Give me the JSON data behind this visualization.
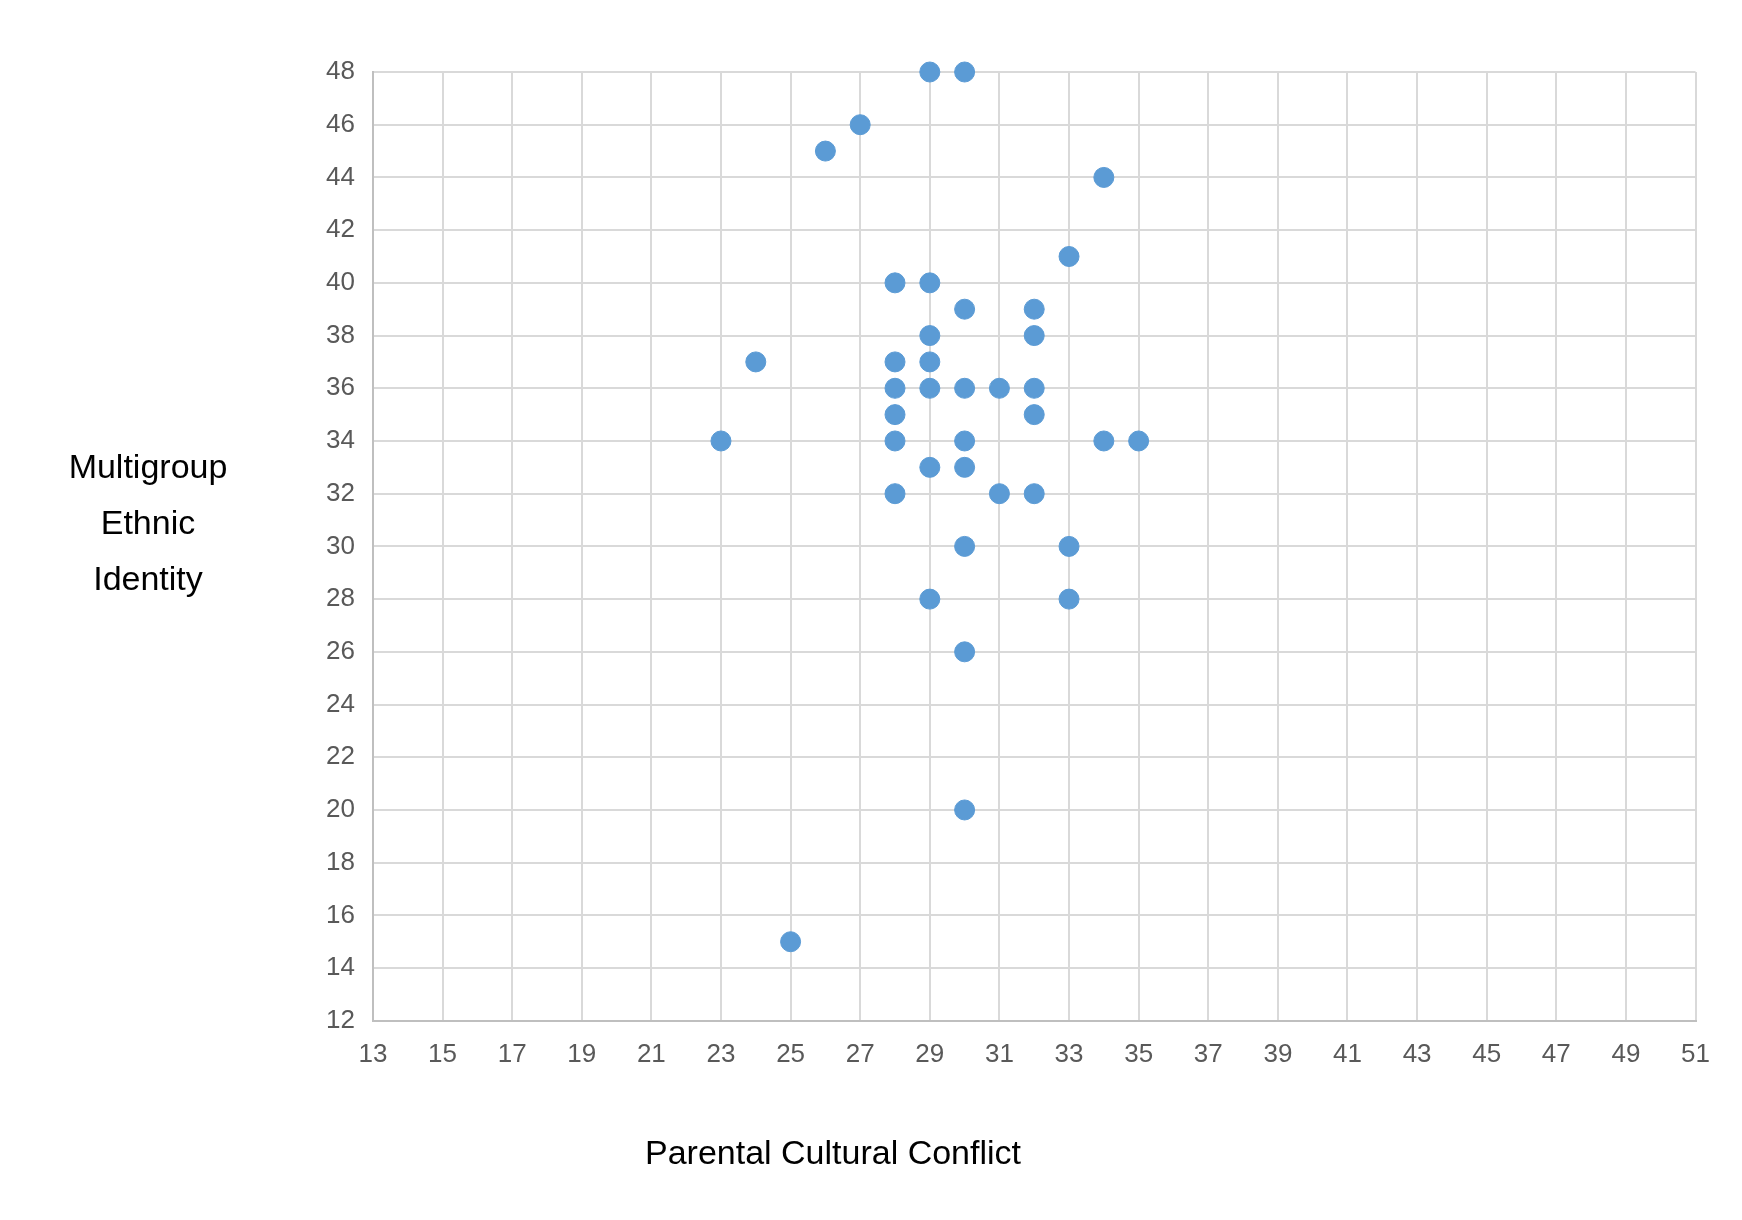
{
  "chart_data": {
    "type": "scatter",
    "xlabel": "Parental Cultural Conflict",
    "ylabel": "Multigroup Ethnic Identity",
    "xlim": [
      13,
      51
    ],
    "xticks": [
      13,
      15,
      17,
      19,
      21,
      23,
      25,
      27,
      29,
      31,
      33,
      35,
      37,
      39,
      41,
      43,
      45,
      47,
      49,
      51
    ],
    "ylim": [
      12,
      48
    ],
    "yticks": [
      12,
      14,
      16,
      18,
      20,
      22,
      24,
      26,
      28,
      30,
      32,
      34,
      36,
      38,
      40,
      42,
      44,
      46,
      48
    ],
    "grid": true,
    "marker": "circle",
    "legend": false,
    "series": [
      {
        "color": "#5b9bd5",
        "x": [
          29,
          30,
          27,
          26,
          34,
          33,
          28,
          29,
          30,
          32,
          29,
          32,
          24,
          28,
          29,
          28,
          29,
          30,
          31,
          32,
          28,
          32,
          23,
          28,
          30,
          34,
          35,
          29,
          30,
          28,
          31,
          32,
          30,
          33,
          29,
          33,
          30,
          30,
          25
        ],
        "values": [
          48,
          48,
          46,
          45,
          44,
          41,
          40,
          40,
          39,
          39,
          38,
          38,
          37,
          37,
          37,
          36,
          36,
          36,
          36,
          36,
          35,
          35,
          34,
          34,
          34,
          34,
          34,
          33,
          33,
          32,
          32,
          32,
          30,
          30,
          28,
          28,
          26,
          20,
          15
        ]
      }
    ]
  }
}
